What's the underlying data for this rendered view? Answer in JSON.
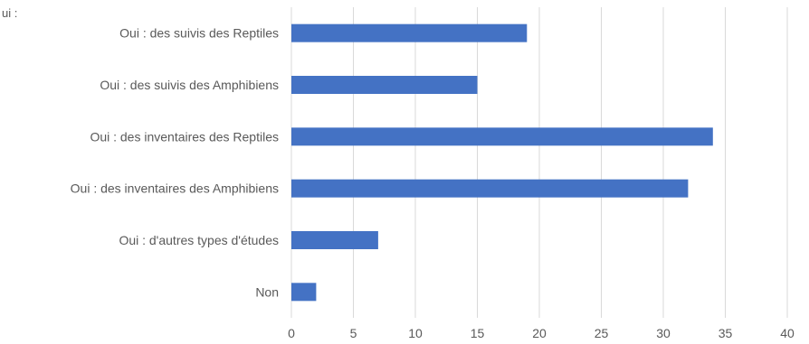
{
  "chart_data": {
    "type": "bar",
    "orientation": "horizontal",
    "title": "",
    "xlabel": "",
    "ylabel": "",
    "corner_label": "ui :",
    "categories": [
      "Oui : des suivis des Reptiles",
      "Oui : des suivis  des Amphibiens",
      "Oui : des inventaires des Reptiles",
      "Oui : des inventaires des Amphibiens",
      "Oui : d'autres types d'études",
      "Non"
    ],
    "values": [
      19,
      15,
      34,
      32,
      7,
      2
    ],
    "xlim": [
      0,
      40
    ],
    "xticks": [
      0,
      5,
      10,
      15,
      20,
      25,
      30,
      35,
      40
    ],
    "grid": "vertical",
    "legend": "none",
    "colors": {
      "bar": "#4472c4",
      "grid": "#d9d9d9",
      "text": "#595959"
    }
  }
}
